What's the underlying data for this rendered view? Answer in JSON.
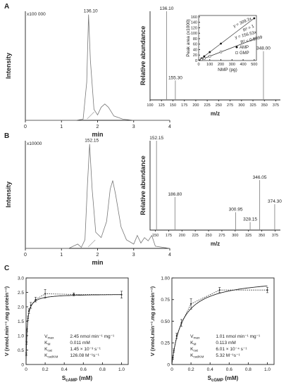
{
  "panel_labels": [
    "A",
    "B",
    "C"
  ],
  "chart_data": [
    {
      "id": "chromA",
      "type": "line",
      "panel": "A",
      "xlabel": "min",
      "ylabel": "Intensity",
      "scale_note": "x100 000",
      "xticks": [
        "0",
        "1",
        "2",
        "3",
        "4"
      ],
      "xlim": [
        0,
        4
      ],
      "ylim": [
        0,
        1
      ],
      "peak_label": "136.10",
      "series": [
        {
          "x": [
            0,
            1.4,
            1.6,
            1.7,
            1.75,
            1.8,
            1.9,
            2.0,
            2.1,
            2.2,
            2.3,
            2.45,
            2.7,
            3.0,
            3.5,
            4.0
          ],
          "values": [
            0,
            0,
            0.01,
            0.35,
            0.97,
            0.55,
            0.1,
            0.05,
            0.12,
            0.15,
            0.12,
            0.04,
            0.01,
            0,
            0,
            0
          ]
        }
      ]
    },
    {
      "id": "msA",
      "type": "bar",
      "panel": "A",
      "xlabel": "m/z",
      "ylabel": "Relative abundance",
      "xticks": [
        "100",
        "125",
        "150",
        "175",
        "200",
        "225",
        "250",
        "275",
        "300",
        "325",
        "350",
        "375"
      ],
      "xlim": [
        100,
        385
      ],
      "ylim": [
        0,
        100
      ],
      "peaks": [
        {
          "x": 136.1,
          "y": 100,
          "label": "136.10"
        },
        {
          "x": 155.3,
          "y": 22,
          "label": "155.30"
        },
        {
          "x": 348.0,
          "y": 55,
          "label": "348.00"
        }
      ]
    },
    {
      "id": "inset",
      "type": "line",
      "panel": "A",
      "xlabel": "NMP (pg)",
      "ylabel": "Peak area (x1000)",
      "xticks": [
        "0",
        "100",
        "200",
        "300",
        "400",
        "500"
      ],
      "yticks": [
        "0",
        "20",
        "40",
        "60",
        "80",
        "100",
        "120",
        "140",
        "160"
      ],
      "xlim": [
        0,
        520
      ],
      "ylim": [
        0,
        165
      ],
      "annotations": [
        "y = 309.3x",
        "R² = 1",
        "y = 156.53x",
        "R² = 0.9999"
      ],
      "series": [
        {
          "name": "AMP",
          "x": [
            25,
            50,
            100,
            200,
            500
          ],
          "values": [
            7.7,
            15.5,
            30.9,
            61.9,
            154.7
          ]
        },
        {
          "name": "GMP",
          "x": [
            25,
            50,
            100,
            200,
            500
          ],
          "values": [
            3.9,
            7.8,
            15.7,
            31.3,
            78.3
          ]
        }
      ]
    },
    {
      "id": "chromB",
      "type": "line",
      "panel": "B",
      "xlabel": "min",
      "ylabel": "Intensity",
      "scale_note": "x10000",
      "xticks": [
        "0",
        "1",
        "2",
        "3",
        "4"
      ],
      "xlim": [
        0,
        4
      ],
      "ylim": [
        0,
        1
      ],
      "peak_label": "152.15",
      "series": [
        {
          "x": [
            0,
            1.2,
            1.45,
            1.55,
            1.65,
            1.72,
            1.78,
            1.85,
            1.95,
            2.1,
            2.25,
            2.35,
            2.42,
            2.5,
            2.65,
            2.8,
            3.0,
            3.1,
            3.2,
            3.3,
            3.4,
            3.5,
            3.6,
            4.0
          ],
          "values": [
            0,
            0,
            0.04,
            0.01,
            0.08,
            0.6,
            0.97,
            0.55,
            0.15,
            0.1,
            0.25,
            0.55,
            0.63,
            0.5,
            0.2,
            0.08,
            0.04,
            0.12,
            0.05,
            0.1,
            0.07,
            0.12,
            0.02,
            0
          ]
        }
      ]
    },
    {
      "id": "msB",
      "type": "bar",
      "panel": "B",
      "xlabel": "m/z",
      "ylabel": "Relative abundance",
      "xticks": [
        "150",
        "175",
        "200",
        "225",
        "250",
        "275",
        "300",
        "325",
        "350",
        "375"
      ],
      "xlim": [
        140,
        385
      ],
      "ylim": [
        0,
        100
      ],
      "peaks": [
        {
          "x": 152.15,
          "y": 100,
          "label": "152.15"
        },
        {
          "x": 186.8,
          "y": 37,
          "label": "186.80"
        },
        {
          "x": 300.95,
          "y": 20,
          "label": "300.95"
        },
        {
          "x": 328.15,
          "y": 9,
          "label": "328.15"
        },
        {
          "x": 346.05,
          "y": 56,
          "label": "346.05"
        },
        {
          "x": 374.3,
          "y": 29,
          "label": "374.30"
        }
      ]
    },
    {
      "id": "kinA",
      "type": "line",
      "panel": "C",
      "xlabel": "S",
      "xlabel_sub": "cAMP",
      "xlabel_unit": "(mM)",
      "ylabel": "V (nmol.min⁻¹.mg protein⁻¹)",
      "xticks": [
        "0",
        "0.2",
        "0.4",
        "0.6",
        "0.8",
        "1.0"
      ],
      "yticks": [
        "0",
        "0.5",
        "1.0",
        "1.5",
        "2.0",
        "2.5",
        "3.0"
      ],
      "xlim": [
        0,
        1.07
      ],
      "ylim": [
        0,
        3.0
      ],
      "params": [
        {
          "name": "V",
          "sub": "max",
          "value": "2.45 nmol min⁻¹ mg⁻¹"
        },
        {
          "name": "K",
          "sub": "M",
          "value": "0.011 mM"
        },
        {
          "name": "K",
          "sub": "cat",
          "value": "1.45 × 10⁻³ s⁻¹"
        },
        {
          "name": "K",
          "sub": "cat/KM",
          "value": "126.08 M⁻¹s⁻¹"
        }
      ],
      "series": [
        {
          "x": [
            0.002,
            0.005,
            0.01,
            0.02,
            0.03,
            0.05,
            0.1,
            0.2,
            0.5,
            1.0
          ],
          "values": [
            0.35,
            0.75,
            1.2,
            1.6,
            1.85,
            2.05,
            2.25,
            2.45,
            2.43,
            2.42
          ],
          "errors": [
            0.05,
            0.05,
            0.06,
            0.08,
            0.08,
            0.1,
            0.08,
            0.15,
            0.05,
            0.12
          ]
        }
      ]
    },
    {
      "id": "kinB",
      "type": "line",
      "panel": "C",
      "xlabel": "S",
      "xlabel_sub": "cGMP",
      "xlabel_unit": "(mM)",
      "ylabel": "V (nmol.min⁻¹.mg protein⁻¹)",
      "xticks": [
        "0",
        "0.2",
        "0.4",
        "0.6",
        "0.8",
        "1.0"
      ],
      "yticks": [
        "0",
        "0.25",
        "0.50",
        "0.75",
        "1.00"
      ],
      "xlim": [
        0,
        1.07
      ],
      "ylim": [
        0,
        1.0
      ],
      "params": [
        {
          "name": "V",
          "sub": "max",
          "value": "1.01 nmol min⁻¹ mg⁻¹"
        },
        {
          "name": "K",
          "sub": "M",
          "value": "0.113 mM"
        },
        {
          "name": "K",
          "sub": "cat",
          "value": "6.01 × 10⁻⁴ s⁻¹"
        },
        {
          "name": "K",
          "sub": "cat/KM",
          "value": "5.32 M⁻¹s⁻¹"
        }
      ],
      "series": [
        {
          "x": [
            0.01,
            0.02,
            0.05,
            0.1,
            0.2,
            0.5,
            1.0
          ],
          "values": [
            0.08,
            0.16,
            0.33,
            0.48,
            0.7,
            0.86,
            0.86
          ],
          "errors": [
            0.02,
            0.02,
            0.03,
            0.04,
            0.06,
            0.03,
            0.03
          ]
        }
      ]
    }
  ]
}
